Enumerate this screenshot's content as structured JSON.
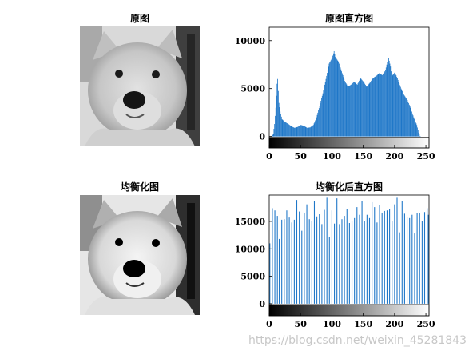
{
  "images": [
    {
      "title": "原图"
    },
    {
      "title": "均衡化图"
    }
  ],
  "watermark": "https://blog.csdn.net/weixin_45281843",
  "chart_data": [
    {
      "type": "bar",
      "title": "原图直方图",
      "xlabel": "",
      "ylabel": "",
      "xlim": [
        0,
        255
      ],
      "ylim": [
        -1200,
        11400
      ],
      "xticks": [
        "0",
        "50",
        "100",
        "150",
        "200",
        "250"
      ],
      "yticks": [
        "0",
        "5000",
        "10000"
      ],
      "colorbar": true,
      "profile": [
        [
          0,
          0
        ],
        [
          4,
          20
        ],
        [
          6,
          300
        ],
        [
          8,
          1300
        ],
        [
          10,
          3000
        ],
        [
          12,
          5500
        ],
        [
          13,
          6000
        ],
        [
          15,
          3500
        ],
        [
          17,
          2600
        ],
        [
          20,
          1800
        ],
        [
          25,
          1500
        ],
        [
          30,
          1300
        ],
        [
          35,
          1050
        ],
        [
          40,
          900
        ],
        [
          45,
          1000
        ],
        [
          50,
          1200
        ],
        [
          55,
          1100
        ],
        [
          60,
          900
        ],
        [
          65,
          950
        ],
        [
          70,
          1200
        ],
        [
          75,
          2000
        ],
        [
          80,
          3200
        ],
        [
          85,
          4500
        ],
        [
          90,
          6000
        ],
        [
          95,
          7600
        ],
        [
          100,
          8200
        ],
        [
          103,
          8900
        ],
        [
          105,
          8300
        ],
        [
          110,
          7800
        ],
        [
          115,
          6800
        ],
        [
          120,
          5800
        ],
        [
          125,
          5200
        ],
        [
          130,
          5400
        ],
        [
          135,
          5700
        ],
        [
          140,
          5400
        ],
        [
          145,
          6100
        ],
        [
          150,
          5700
        ],
        [
          155,
          5200
        ],
        [
          160,
          5600
        ],
        [
          165,
          6100
        ],
        [
          170,
          6300
        ],
        [
          175,
          6600
        ],
        [
          180,
          6400
        ],
        [
          185,
          6900
        ],
        [
          188,
          7800
        ],
        [
          190,
          8200
        ],
        [
          193,
          7300
        ],
        [
          195,
          6300
        ],
        [
          200,
          6700
        ],
        [
          205,
          5900
        ],
        [
          210,
          5000
        ],
        [
          215,
          4300
        ],
        [
          220,
          3800
        ],
        [
          225,
          3000
        ],
        [
          230,
          2000
        ],
        [
          235,
          1200
        ],
        [
          238,
          400
        ],
        [
          240,
          50
        ],
        [
          242,
          0
        ]
      ]
    },
    {
      "type": "bar",
      "title": "均衡化后直方图",
      "xlabel": "",
      "ylabel": "",
      "xlim": [
        0,
        255
      ],
      "ylim": [
        -2200,
        19800
      ],
      "xticks": [
        "0",
        "50",
        "100",
        "150",
        "200",
        "250"
      ],
      "yticks": [
        "0",
        "5000",
        "10000",
        "15000"
      ],
      "colorbar": true,
      "spikes": [
        [
          1,
          11000
        ],
        [
          5,
          17400
        ],
        [
          9,
          17000
        ],
        [
          13,
          16000
        ],
        [
          16,
          11800
        ],
        [
          20,
          15300
        ],
        [
          24,
          15400
        ],
        [
          28,
          17000
        ],
        [
          32,
          15700
        ],
        [
          36,
          14800
        ],
        [
          40,
          15300
        ],
        [
          44,
          18900
        ],
        [
          48,
          16800
        ],
        [
          52,
          13300
        ],
        [
          56,
          16600
        ],
        [
          60,
          18100
        ],
        [
          64,
          15400
        ],
        [
          68,
          15000
        ],
        [
          72,
          18700
        ],
        [
          76,
          15900
        ],
        [
          80,
          16300
        ],
        [
          84,
          14500
        ],
        [
          88,
          17100
        ],
        [
          92,
          19300
        ],
        [
          96,
          12100
        ],
        [
          100,
          17000
        ],
        [
          104,
          14600
        ],
        [
          108,
          19200
        ],
        [
          112,
          14500
        ],
        [
          116,
          15400
        ],
        [
          120,
          16000
        ],
        [
          124,
          17200
        ],
        [
          128,
          14700
        ],
        [
          132,
          15100
        ],
        [
          136,
          15600
        ],
        [
          140,
          17600
        ],
        [
          144,
          16200
        ],
        [
          148,
          18700
        ],
        [
          152,
          15100
        ],
        [
          156,
          16200
        ],
        [
          160,
          15600
        ],
        [
          164,
          18500
        ],
        [
          168,
          17600
        ],
        [
          172,
          14800
        ],
        [
          176,
          18000
        ],
        [
          180,
          16600
        ],
        [
          184,
          16900
        ],
        [
          188,
          17000
        ],
        [
          192,
          17300
        ],
        [
          196,
          15100
        ],
        [
          200,
          18100
        ],
        [
          204,
          19300
        ],
        [
          208,
          13000
        ],
        [
          212,
          18700
        ],
        [
          216,
          16400
        ],
        [
          220,
          15800
        ],
        [
          224,
          15600
        ],
        [
          228,
          16200
        ],
        [
          232,
          12800
        ],
        [
          236,
          16500
        ],
        [
          240,
          16500
        ],
        [
          244,
          15100
        ],
        [
          248,
          16700
        ],
        [
          252,
          17400
        ],
        [
          254,
          16200
        ]
      ]
    }
  ]
}
